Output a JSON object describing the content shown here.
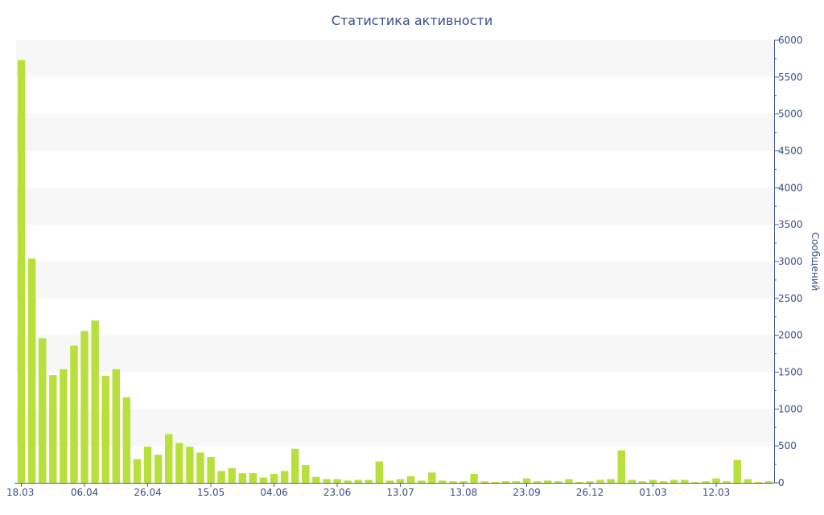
{
  "chart_data": {
    "type": "bar",
    "title": "Статистика активности",
    "ylabel": "Сообщений",
    "xlabel": "",
    "ylim": [
      0,
      6000
    ],
    "y_axis_position": "right",
    "y_ticks": [
      "0",
      "500",
      "1000",
      "1500",
      "2000",
      "2500",
      "3000",
      "3500",
      "4000",
      "4500",
      "5000",
      "5500",
      "6000"
    ],
    "x_tick_labels": [
      {
        "index": 0,
        "label": "18.03"
      },
      {
        "index": 6,
        "label": "06.04"
      },
      {
        "index": 12,
        "label": "26.04"
      },
      {
        "index": 18,
        "label": "15.05"
      },
      {
        "index": 24,
        "label": "04.06"
      },
      {
        "index": 30,
        "label": "23.06"
      },
      {
        "index": 36,
        "label": "13.07"
      },
      {
        "index": 42,
        "label": "13.08"
      },
      {
        "index": 48,
        "label": "23.09"
      },
      {
        "index": 54,
        "label": "26.12"
      },
      {
        "index": 60,
        "label": "01.03"
      },
      {
        "index": 66,
        "label": "12.03"
      }
    ],
    "values": [
      5730,
      3040,
      1960,
      1460,
      1540,
      1860,
      2060,
      2200,
      1450,
      1540,
      1160,
      320,
      490,
      380,
      660,
      540,
      490,
      410,
      350,
      160,
      200,
      130,
      130,
      70,
      120,
      160,
      460,
      240,
      80,
      50,
      50,
      30,
      40,
      40,
      290,
      30,
      50,
      90,
      30,
      140,
      30,
      20,
      20,
      120,
      20,
      10,
      20,
      20,
      60,
      20,
      30,
      20,
      50,
      10,
      20,
      40,
      50,
      440,
      40,
      20,
      40,
      20,
      40,
      40,
      10,
      20,
      60,
      20,
      310,
      50,
      10,
      20
    ],
    "bar_color": "#b8e03a",
    "grid": "horizontal bands",
    "grid_color": "#f7f7f7",
    "axis_color": "#4a5f94"
  }
}
